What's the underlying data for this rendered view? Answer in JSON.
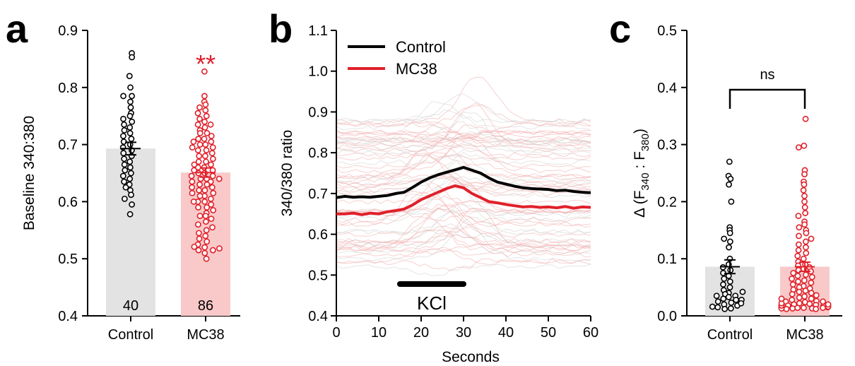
{
  "colors": {
    "control": "#000000",
    "mc38": "#e0202a",
    "control_bar": "#e3e3e3",
    "mc38_bar": "#f9c9c9",
    "trace_control": "#cfcfcf",
    "trace_mc38": "#f3a9a9"
  },
  "chart_data": [
    {
      "panel_label": "a",
      "type": "bar",
      "ylabel": "Baseline 340:380",
      "ylim": [
        0.4,
        0.9
      ],
      "yticks": [
        "0.4",
        "0.5",
        "0.6",
        "0.7",
        "0.8",
        "0.9"
      ],
      "categories": [
        "Control",
        "MC38"
      ],
      "means": [
        0.693,
        0.651
      ],
      "sem": [
        0.011,
        0.008
      ],
      "n_labels": [
        "40",
        "86"
      ],
      "significance": "**",
      "points": [
        [
          0.86,
          0.853,
          0.82,
          0.8,
          0.785,
          0.785,
          0.775,
          0.765,
          0.755,
          0.75,
          0.745,
          0.74,
          0.735,
          0.73,
          0.725,
          0.72,
          0.715,
          0.71,
          0.705,
          0.7,
          0.695,
          0.69,
          0.685,
          0.68,
          0.675,
          0.67,
          0.665,
          0.66,
          0.655,
          0.65,
          0.645,
          0.64,
          0.635,
          0.63,
          0.625,
          0.62,
          0.612,
          0.605,
          0.595,
          0.578
        ],
        [
          0.828,
          0.785,
          0.775,
          0.77,
          0.765,
          0.76,
          0.755,
          0.75,
          0.745,
          0.74,
          0.735,
          0.735,
          0.73,
          0.725,
          0.72,
          0.72,
          0.715,
          0.71,
          0.71,
          0.705,
          0.7,
          0.7,
          0.695,
          0.69,
          0.69,
          0.685,
          0.68,
          0.68,
          0.675,
          0.67,
          0.67,
          0.665,
          0.66,
          0.66,
          0.655,
          0.655,
          0.65,
          0.65,
          0.645,
          0.645,
          0.64,
          0.64,
          0.635,
          0.635,
          0.63,
          0.63,
          0.625,
          0.625,
          0.62,
          0.62,
          0.615,
          0.615,
          0.61,
          0.61,
          0.605,
          0.6,
          0.6,
          0.595,
          0.59,
          0.59,
          0.585,
          0.58,
          0.575,
          0.575,
          0.57,
          0.565,
          0.56,
          0.555,
          0.55,
          0.545,
          0.54,
          0.535,
          0.53,
          0.525,
          0.52,
          0.515,
          0.515,
          0.51,
          0.705,
          0.695,
          0.665,
          0.64,
          0.6,
          0.521,
          0.518,
          0.5
        ]
      ]
    },
    {
      "panel_label": "b",
      "type": "line",
      "xlabel": "Seconds",
      "ylabel": "340/380 ratio",
      "xlim": [
        0,
        60
      ],
      "ylim": [
        0.4,
        1.1
      ],
      "xticks": [
        "0",
        "10",
        "20",
        "30",
        "40",
        "50",
        "60"
      ],
      "yticks": [
        "0.4",
        "0.5",
        "0.6",
        "0.7",
        "0.8",
        "0.9",
        "1.0",
        "1.1"
      ],
      "annotation": "KCl",
      "stimulus_bar": [
        15,
        30
      ],
      "series": [
        {
          "name": "Control",
          "x": [
            0,
            2,
            4,
            6,
            8,
            10,
            12,
            14,
            16,
            18,
            20,
            22,
            24,
            26,
            28,
            30,
            32,
            34,
            36,
            38,
            40,
            42,
            44,
            46,
            48,
            50,
            52,
            54,
            56,
            58,
            60
          ],
          "values": [
            0.69,
            0.693,
            0.691,
            0.692,
            0.691,
            0.693,
            0.695,
            0.7,
            0.703,
            0.715,
            0.728,
            0.738,
            0.746,
            0.752,
            0.758,
            0.764,
            0.757,
            0.75,
            0.738,
            0.728,
            0.723,
            0.718,
            0.714,
            0.712,
            0.711,
            0.71,
            0.707,
            0.708,
            0.705,
            0.703,
            0.702
          ]
        },
        {
          "name": "MC38",
          "x": [
            0,
            2,
            4,
            6,
            8,
            10,
            12,
            14,
            16,
            18,
            20,
            22,
            24,
            26,
            28,
            30,
            32,
            34,
            36,
            38,
            40,
            42,
            44,
            46,
            48,
            50,
            52,
            54,
            56,
            58,
            60
          ],
          "values": [
            0.65,
            0.65,
            0.652,
            0.648,
            0.652,
            0.65,
            0.655,
            0.658,
            0.662,
            0.672,
            0.685,
            0.694,
            0.703,
            0.712,
            0.719,
            0.714,
            0.7,
            0.69,
            0.68,
            0.677,
            0.673,
            0.67,
            0.667,
            0.668,
            0.666,
            0.667,
            0.665,
            0.668,
            0.664,
            0.667,
            0.666
          ]
        }
      ]
    },
    {
      "panel_label": "c",
      "type": "bar",
      "ylabel_main": "Δ (F",
      "ylabel_sub1": "340",
      "ylabel_mid": " : F",
      "ylabel_sub2": "380",
      "ylabel_end": ")",
      "ylim": [
        0,
        0.5
      ],
      "yticks": [
        "0.0",
        "0.1",
        "0.2",
        "0.3",
        "0.4",
        "0.5"
      ],
      "categories": [
        "Control",
        "MC38"
      ],
      "means": [
        0.086,
        0.086
      ],
      "sem": [
        0.012,
        0.008
      ],
      "significance": "ns",
      "points": [
        [
          0.27,
          0.245,
          0.24,
          0.23,
          0.2,
          0.155,
          0.15,
          0.145,
          0.135,
          0.13,
          0.12,
          0.1,
          0.09,
          0.085,
          0.08,
          0.075,
          0.07,
          0.065,
          0.06,
          0.055,
          0.05,
          0.045,
          0.04,
          0.038,
          0.035,
          0.033,
          0.03,
          0.028,
          0.025,
          0.023,
          0.02,
          0.018,
          0.015,
          0.013,
          0.012,
          0.035,
          0.042,
          0.028,
          0.022,
          0.016
        ],
        [
          0.345,
          0.298,
          0.295,
          0.255,
          0.248,
          0.235,
          0.23,
          0.22,
          0.21,
          0.2,
          0.19,
          0.18,
          0.175,
          0.165,
          0.16,
          0.155,
          0.15,
          0.145,
          0.14,
          0.135,
          0.13,
          0.125,
          0.12,
          0.115,
          0.11,
          0.105,
          0.1,
          0.095,
          0.09,
          0.088,
          0.085,
          0.082,
          0.08,
          0.078,
          0.075,
          0.072,
          0.07,
          0.068,
          0.065,
          0.062,
          0.06,
          0.058,
          0.055,
          0.052,
          0.05,
          0.048,
          0.046,
          0.044,
          0.042,
          0.04,
          0.038,
          0.036,
          0.034,
          0.032,
          0.03,
          0.028,
          0.026,
          0.025,
          0.024,
          0.022,
          0.021,
          0.02,
          0.019,
          0.018,
          0.017,
          0.016,
          0.015,
          0.015,
          0.014,
          0.014,
          0.013,
          0.013,
          0.012,
          0.012,
          0.02,
          0.018,
          0.016,
          0.015,
          0.014,
          0.013,
          0.016,
          0.018,
          0.02,
          0.022,
          0.025,
          0.03
        ]
      ]
    }
  ]
}
